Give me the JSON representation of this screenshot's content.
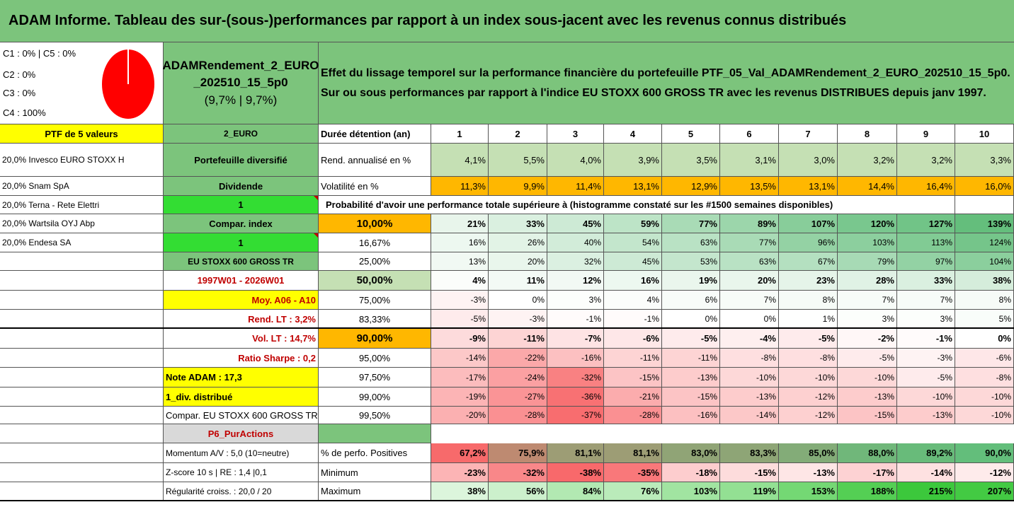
{
  "title": "ADAM Informe. Tableau des sur-(sous-)performances par rapport à un index sous-jacent avec les revenus connus distribués",
  "allocation": [
    "C1 : 0% | C5 : 0%",
    "C2 : 0%",
    "C3 : 0%",
    "C4 : 100%"
  ],
  "portfolio": {
    "name_line1": "ADAMRendement_2_EURO",
    "name_line2": "_202510_15_5p0",
    "name_line3": "(9,7% | 9,7%)"
  },
  "description": {
    "line1": "Effet du lissage temporel sur la performance financière du portefeuille PTF_05_Val_ADAMRendement_2_EURO_202510_15_5p0.",
    "line2": "Sur ou sous performances par rapport à l'indice EU STOXX 600 GROSS TR avec les revenus DISTRIBUES depuis janv 1997."
  },
  "left_col": [
    "PTF de 5 valeurs",
    "20,0% Invesco EURO STOXX H",
    "20,0% Snam SpA",
    "20,0% Terna - Rete Elettri",
    "20,0% Wartsila OYJ Abp",
    "20,0% Endesa SA"
  ],
  "mid_col": {
    "currency": "2_EURO",
    "type": "Portefeuille diversifié",
    "dividend_label": "Dividende",
    "dividend_value": "1",
    "compar_label": "Compar. index",
    "compar_value": "1",
    "index_name": "EU STOXX 600 GROSS TR",
    "period": "1997W01 - 2026W01",
    "moy": "Moy. A06 - A10",
    "rend_lt": "Rend. LT : 3,2%",
    "vol_lt": "Vol. LT : 14,7%",
    "sharpe": "Ratio Sharpe : 0,2",
    "note": "Note ADAM : 17,3",
    "div": "1_div. distribué",
    "compar_full": "Compar. EU STOXX 600 GROSS TR",
    "p6": "P6_PurActions",
    "momentum": "Momentum A/V : 5,0 (10=neutre)",
    "zscore": "Z-score 10 s | RE : 1,4 |0,1",
    "regularite": "Régularité croiss. : 20,0 / 20"
  },
  "labels": {
    "duree": "Durée détention (an)",
    "rend": "Rend. annualisé en %",
    "vol": "Volatilité en %",
    "proba": "Probabilité d'avoir une performance totale supérieure à (histogramme constaté sur les #1500 semaines disponibles)",
    "pos": "% de perfo. Positives",
    "min": "Minimum",
    "max": "Maximum"
  },
  "years": [
    "1",
    "2",
    "3",
    "4",
    "5",
    "6",
    "7",
    "8",
    "9",
    "10"
  ],
  "rend": [
    "4,1%",
    "5,5%",
    "4,0%",
    "3,9%",
    "3,5%",
    "3,1%",
    "3,0%",
    "3,2%",
    "3,2%",
    "3,3%"
  ],
  "vol": [
    "11,3%",
    "9,9%",
    "11,4%",
    "13,1%",
    "12,9%",
    "13,5%",
    "13,1%",
    "14,4%",
    "16,4%",
    "16,0%"
  ],
  "quantiles": [
    {
      "q": "10,00%",
      "v": [
        "21%",
        "33%",
        "45%",
        "59%",
        "77%",
        "89%",
        "107%",
        "120%",
        "127%",
        "139%"
      ]
    },
    {
      "q": "16,67%",
      "v": [
        "16%",
        "26%",
        "40%",
        "54%",
        "63%",
        "77%",
        "96%",
        "103%",
        "113%",
        "124%"
      ]
    },
    {
      "q": "25,00%",
      "v": [
        "13%",
        "20%",
        "32%",
        "45%",
        "53%",
        "63%",
        "67%",
        "79%",
        "97%",
        "104%"
      ]
    },
    {
      "q": "50,00%",
      "v": [
        "4%",
        "11%",
        "12%",
        "16%",
        "19%",
        "20%",
        "23%",
        "28%",
        "33%",
        "38%"
      ]
    },
    {
      "q": "75,00%",
      "v": [
        "-3%",
        "0%",
        "3%",
        "4%",
        "6%",
        "7%",
        "8%",
        "7%",
        "7%",
        "8%"
      ]
    },
    {
      "q": "83,33%",
      "v": [
        "-5%",
        "-3%",
        "-1%",
        "-1%",
        "0%",
        "0%",
        "1%",
        "3%",
        "3%",
        "5%"
      ]
    },
    {
      "q": "90,00%",
      "v": [
        "-9%",
        "-11%",
        "-7%",
        "-6%",
        "-5%",
        "-4%",
        "-5%",
        "-2%",
        "-1%",
        "0%"
      ]
    },
    {
      "q": "95,00%",
      "v": [
        "-14%",
        "-22%",
        "-16%",
        "-11%",
        "-11%",
        "-8%",
        "-8%",
        "-5%",
        "-3%",
        "-6%"
      ]
    },
    {
      "q": "97,50%",
      "v": [
        "-17%",
        "-24%",
        "-32%",
        "-15%",
        "-13%",
        "-10%",
        "-10%",
        "-10%",
        "-5%",
        "-8%"
      ]
    },
    {
      "q": "99,00%",
      "v": [
        "-19%",
        "-27%",
        "-36%",
        "-21%",
        "-15%",
        "-13%",
        "-12%",
        "-13%",
        "-10%",
        "-10%"
      ]
    },
    {
      "q": "99,50%",
      "v": [
        "-20%",
        "-28%",
        "-37%",
        "-28%",
        "-16%",
        "-14%",
        "-12%",
        "-15%",
        "-13%",
        "-10%"
      ]
    }
  ],
  "pos": [
    "67,2%",
    "75,9%",
    "81,1%",
    "81,1%",
    "83,0%",
    "83,3%",
    "85,0%",
    "88,0%",
    "89,2%",
    "90,0%"
  ],
  "min": [
    "-23%",
    "-32%",
    "-38%",
    "-35%",
    "-18%",
    "-15%",
    "-13%",
    "-17%",
    "-14%",
    "-12%"
  ],
  "max": [
    "38%",
    "56%",
    "84%",
    "76%",
    "103%",
    "119%",
    "153%",
    "188%",
    "215%",
    "207%"
  ],
  "colors": {
    "title_green": "#7cc47c",
    "mid_green": "#7cc47c",
    "bright_green": "#33dd33",
    "yellow": "#ffff00",
    "orange": "#ffb700",
    "rend_green": "#c5e0b4",
    "light_grey": "#d9d9d9",
    "pie_red": "#ff0000"
  }
}
